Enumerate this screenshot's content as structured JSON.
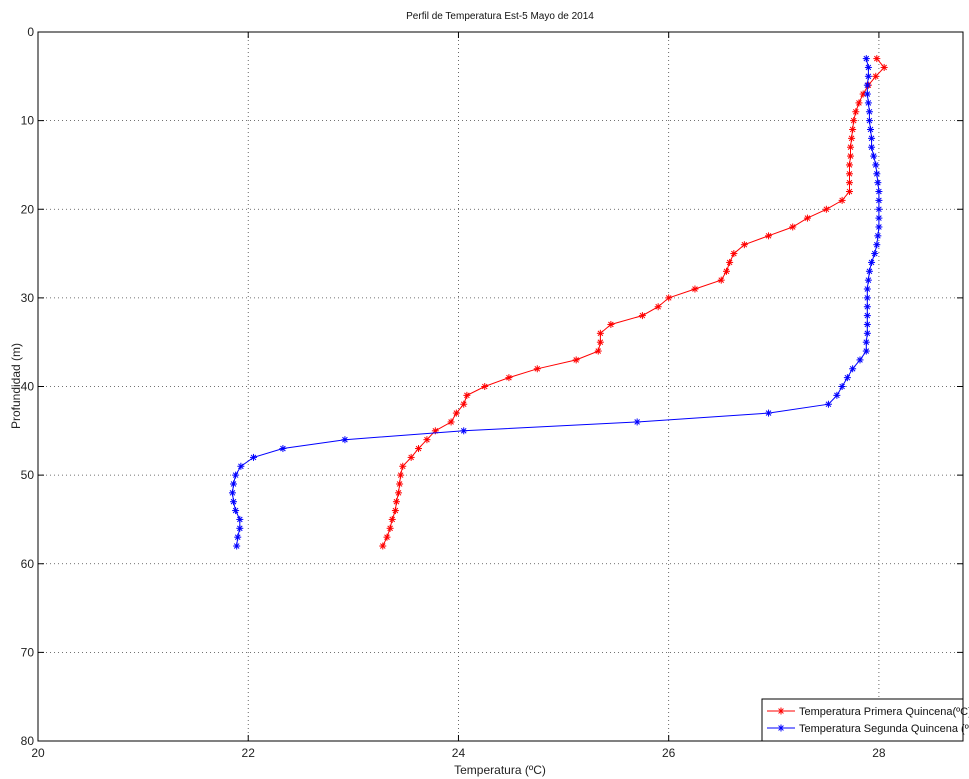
{
  "chart_data": {
    "type": "line",
    "title": "Perfil de Temperatura Est-5 Mayo de 2014",
    "xlabel": "Temperatura (ºC)",
    "ylabel": "Profundidad (m)",
    "xlim": [
      20,
      28.8
    ],
    "ylim": [
      0,
      80
    ],
    "y_reversed": true,
    "xticks": [
      20,
      22,
      24,
      26,
      28
    ],
    "yticks": [
      0,
      10,
      20,
      30,
      40,
      50,
      60,
      70,
      80
    ],
    "grid": true,
    "grid_style": "dotted",
    "legend_position": "bottom-right",
    "marker": "asterisk",
    "series": [
      {
        "name": "Temperatura Primera Quincena(ºC)",
        "color": "#ff0000",
        "points": [
          [
            27.98,
            3
          ],
          [
            28.05,
            4
          ],
          [
            27.97,
            5
          ],
          [
            27.9,
            6
          ],
          [
            27.85,
            7
          ],
          [
            27.81,
            8
          ],
          [
            27.78,
            9
          ],
          [
            27.76,
            10
          ],
          [
            27.75,
            11
          ],
          [
            27.74,
            12
          ],
          [
            27.73,
            13
          ],
          [
            27.73,
            14
          ],
          [
            27.72,
            15
          ],
          [
            27.72,
            16
          ],
          [
            27.72,
            17
          ],
          [
            27.72,
            18
          ],
          [
            27.65,
            19
          ],
          [
            27.5,
            20
          ],
          [
            27.32,
            21
          ],
          [
            27.18,
            22
          ],
          [
            26.95,
            23
          ],
          [
            26.72,
            24
          ],
          [
            26.62,
            25
          ],
          [
            26.58,
            26
          ],
          [
            26.55,
            27
          ],
          [
            26.5,
            28
          ],
          [
            26.25,
            29
          ],
          [
            26.0,
            30
          ],
          [
            25.9,
            31
          ],
          [
            25.75,
            32
          ],
          [
            25.45,
            33
          ],
          [
            25.35,
            34
          ],
          [
            25.35,
            35
          ],
          [
            25.33,
            36
          ],
          [
            25.12,
            37
          ],
          [
            24.75,
            38
          ],
          [
            24.48,
            39
          ],
          [
            24.25,
            40
          ],
          [
            24.08,
            41
          ],
          [
            24.05,
            42
          ],
          [
            23.98,
            43
          ],
          [
            23.93,
            44
          ],
          [
            23.78,
            45
          ],
          [
            23.7,
            46
          ],
          [
            23.62,
            47
          ],
          [
            23.55,
            48
          ],
          [
            23.47,
            49
          ],
          [
            23.45,
            50
          ],
          [
            23.44,
            51
          ],
          [
            23.43,
            52
          ],
          [
            23.41,
            53
          ],
          [
            23.4,
            54
          ],
          [
            23.37,
            55
          ],
          [
            23.35,
            56
          ],
          [
            23.32,
            57
          ],
          [
            23.28,
            58
          ]
        ]
      },
      {
        "name": "Temperatura Segunda Quincena (ºC)",
        "color": "#0000ff",
        "points": [
          [
            27.88,
            3
          ],
          [
            27.9,
            4
          ],
          [
            27.9,
            5
          ],
          [
            27.89,
            6
          ],
          [
            27.89,
            7
          ],
          [
            27.9,
            8
          ],
          [
            27.91,
            9
          ],
          [
            27.91,
            10
          ],
          [
            27.92,
            11
          ],
          [
            27.93,
            12
          ],
          [
            27.93,
            13
          ],
          [
            27.95,
            14
          ],
          [
            27.97,
            15
          ],
          [
            27.98,
            16
          ],
          [
            27.99,
            17
          ],
          [
            28.0,
            18
          ],
          [
            28.0,
            19
          ],
          [
            28.0,
            20
          ],
          [
            28.0,
            21
          ],
          [
            28.0,
            22
          ],
          [
            27.99,
            23
          ],
          [
            27.98,
            24
          ],
          [
            27.96,
            25
          ],
          [
            27.93,
            26
          ],
          [
            27.91,
            27
          ],
          [
            27.9,
            28
          ],
          [
            27.89,
            29
          ],
          [
            27.89,
            30
          ],
          [
            27.89,
            31
          ],
          [
            27.89,
            32
          ],
          [
            27.89,
            33
          ],
          [
            27.89,
            34
          ],
          [
            27.88,
            35
          ],
          [
            27.88,
            36
          ],
          [
            27.82,
            37
          ],
          [
            27.75,
            38
          ],
          [
            27.7,
            39
          ],
          [
            27.65,
            40
          ],
          [
            27.6,
            41
          ],
          [
            27.52,
            42
          ],
          [
            26.95,
            43
          ],
          [
            25.7,
            44
          ],
          [
            24.05,
            45
          ],
          [
            22.92,
            46
          ],
          [
            22.33,
            47
          ],
          [
            22.05,
            48
          ],
          [
            21.93,
            49
          ],
          [
            21.88,
            50
          ],
          [
            21.86,
            51
          ],
          [
            21.85,
            52
          ],
          [
            21.86,
            53
          ],
          [
            21.88,
            54
          ],
          [
            21.92,
            55
          ],
          [
            21.92,
            56
          ],
          [
            21.9,
            57
          ],
          [
            21.89,
            58
          ]
        ]
      }
    ]
  }
}
